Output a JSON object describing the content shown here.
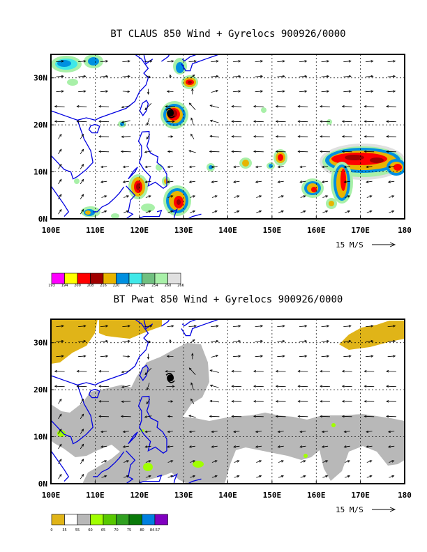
{
  "chart_data": [
    {
      "type": "heatmap",
      "title": "BT CLAUS 850 Wind + Gyrelocs 900926/0000",
      "x_ticks": [
        "100E",
        "110E",
        "120E",
        "130E",
        "140E",
        "150E",
        "160E",
        "170E",
        "180"
      ],
      "y_ticks": [
        "0N",
        "10N",
        "20N",
        "30N"
      ],
      "xlim": [
        100,
        180
      ],
      "ylim": [
        0,
        35
      ],
      "grid": true,
      "vector_reference": "15 M/S",
      "colorbar": {
        "labels": [
          "193",
          "194",
          "200",
          "208",
          "216",
          "220",
          "242",
          "248",
          "254",
          "260",
          "266"
        ],
        "colors": [
          "#ff00ff",
          "#ffff00",
          "#ff0000",
          "#a00000",
          "#e8b400",
          "#0090e0",
          "#40e8e8",
          "#70c080",
          "#a8f0a8",
          "#e0e0e0"
        ]
      },
      "cyclone_center": {
        "lon": 127,
        "lat": 22.5
      }
    },
    {
      "type": "heatmap",
      "title": "BT Pwat 850 Wind + Gyrelocs 900926/0000",
      "x_ticks": [
        "100E",
        "110E",
        "120E",
        "130E",
        "140E",
        "150E",
        "160E",
        "170E",
        "180"
      ],
      "y_ticks": [
        "0N",
        "10N",
        "20N",
        "30N"
      ],
      "xlim": [
        100,
        180
      ],
      "ylim": [
        0,
        35
      ],
      "grid": true,
      "vector_reference": "15 M/S",
      "colorbar": {
        "labels": [
          "0",
          "35",
          "55",
          "60",
          "65",
          "70",
          "75",
          "80",
          "84.57"
        ],
        "colors": [
          "#e0b418",
          "#ffffff",
          "#b8b8b8",
          "#a0ff00",
          "#58c800",
          "#30a020",
          "#0a7a0a",
          "#0080e0",
          "#8000c0"
        ]
      },
      "cyclone_center": {
        "lon": 127,
        "lat": 22.5
      }
    }
  ]
}
